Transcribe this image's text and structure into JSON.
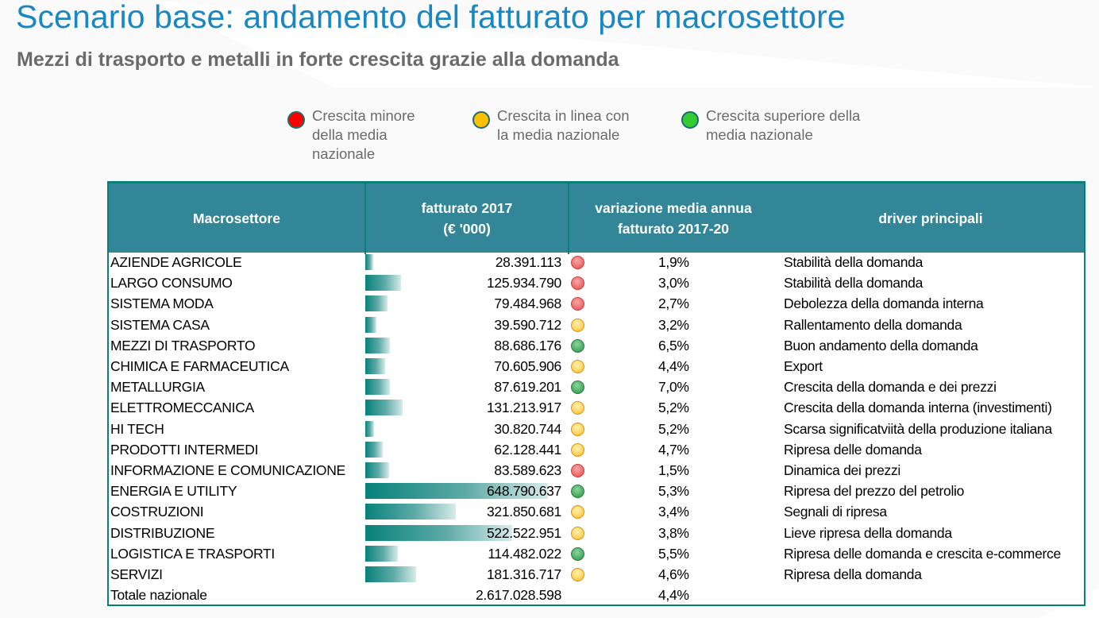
{
  "header": {
    "title": "Scenario base: andamento del fatturato per macrosettore",
    "subtitle": "Mezzi di trasporto e metalli in forte crescita grazie alla domanda"
  },
  "legend": [
    {
      "status": "red",
      "color": "#ff0000",
      "label": "Crescita minore\ndella media\nnazionale"
    },
    {
      "status": "yellow",
      "color": "#ffc000",
      "label": "Crescita in linea  con\nla media nazionale"
    },
    {
      "status": "green",
      "color": "#33cc33",
      "label": "Crescita superiore della\nmedia nazionale"
    }
  ],
  "table": {
    "columns": [
      "Macrosettore",
      "fatturato 2017\n(€ '000)",
      "variazione media annua\nfatturato 2017-20",
      "driver principali"
    ],
    "bar_color": "#07817a",
    "header_color": "#338598",
    "rows": [
      {
        "name": "AZIENDE AGRICOLE",
        "fatturato": "28.391.113",
        "fatturato_num": 28391113,
        "status": "red",
        "variazione": "1,9%",
        "driver": "Stabilità della domanda"
      },
      {
        "name": "LARGO CONSUMO",
        "fatturato": "125.934.790",
        "fatturato_num": 125934790,
        "status": "red",
        "variazione": "3,0%",
        "driver": "Stabilità della domanda"
      },
      {
        "name": "SISTEMA MODA",
        "fatturato": "79.484.968",
        "fatturato_num": 79484968,
        "status": "red",
        "variazione": "2,7%",
        "driver": "Debolezza della domanda interna"
      },
      {
        "name": "SISTEMA CASA",
        "fatturato": "39.590.712",
        "fatturato_num": 39590712,
        "status": "yellow",
        "variazione": "3,2%",
        "driver": "Rallentamento della domanda"
      },
      {
        "name": "MEZZI DI TRASPORTO",
        "fatturato": "88.686.176",
        "fatturato_num": 88686176,
        "status": "green",
        "variazione": "6,5%",
        "driver": "Buon andamento della domanda"
      },
      {
        "name": "CHIMICA E FARMACEUTICA",
        "fatturato": "70.605.906",
        "fatturato_num": 70605906,
        "status": "yellow",
        "variazione": "4,4%",
        "driver": "Export"
      },
      {
        "name": "METALLURGIA",
        "fatturato": "87.619.201",
        "fatturato_num": 87619201,
        "status": "green",
        "variazione": "7,0%",
        "driver": "Crescita della domanda e dei prezzi"
      },
      {
        "name": "ELETTROMECCANICA",
        "fatturato": "131.213.917",
        "fatturato_num": 131213917,
        "status": "yellow",
        "variazione": "5,2%",
        "driver": "Crescita della domanda interna (investimenti)"
      },
      {
        "name": "HI TECH",
        "fatturato": "30.820.744",
        "fatturato_num": 30820744,
        "status": "yellow",
        "variazione": "5,2%",
        "driver": "Scarsa significatviità della produzione italiana"
      },
      {
        "name": "PRODOTTI INTERMEDI",
        "fatturato": "62.128.441",
        "fatturato_num": 62128441,
        "status": "yellow",
        "variazione": "4,7%",
        "driver": "Ripresa delle domanda"
      },
      {
        "name": "INFORMAZIONE E COMUNICAZIONE",
        "fatturato": "83.589.623",
        "fatturato_num": 83589623,
        "status": "red",
        "variazione": "1,5%",
        "driver": "Dinamica dei prezzi"
      },
      {
        "name": "ENERGIA E UTILITY",
        "fatturato": "648.790.637",
        "fatturato_num": 648790637,
        "status": "green",
        "variazione": "5,3%",
        "driver": "Ripresa del prezzo del petrolio"
      },
      {
        "name": "COSTRUZIONI",
        "fatturato": "321.850.681",
        "fatturato_num": 321850681,
        "status": "yellow",
        "variazione": "3,4%",
        "driver": "Segnali di ripresa"
      },
      {
        "name": "DISTRIBUZIONE",
        "fatturato": "522.522.951",
        "fatturato_num": 522522951,
        "status": "yellow",
        "variazione": "3,8%",
        "driver": "Lieve ripresa della domanda"
      },
      {
        "name": "LOGISTICA E TRASPORTI",
        "fatturato": "114.482.022",
        "fatturato_num": 114482022,
        "status": "green",
        "variazione": "5,5%",
        "driver": "Ripresa delle domanda e crescita e-commerce"
      },
      {
        "name": "SERVIZI",
        "fatturato": "181.316.717",
        "fatturato_num": 181316717,
        "status": "yellow",
        "variazione": "4,6%",
        "driver": "Ripresa della domanda"
      }
    ],
    "total": {
      "name": "Totale nazionale",
      "fatturato": "2.617.028.598",
      "variazione": "4,4%",
      "driver": ""
    }
  }
}
